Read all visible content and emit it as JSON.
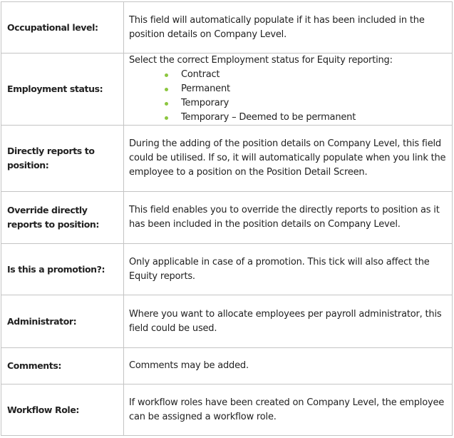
{
  "bullet_color": "#8cc63f",
  "rows": [
    {
      "label": "Occupational level:",
      "text": "This field will automatically populate if it has been included in the position details on Company Level."
    },
    {
      "label": "Employment status:",
      "text": "Select the correct Employment status for Equity reporting:",
      "bullets": [
        "Contract",
        "Permanent",
        "Temporary",
        "Temporary – Deemed to be permanent"
      ]
    },
    {
      "label": "Directly reports to position:",
      "text": "During the adding of the position details on Company Level, this field could be utilised. If so, it will automatically populate when you link the employee to a position on the Position Detail Screen."
    },
    {
      "label": "Override directly reports to position:",
      "text": "This field enables you to override the directly reports to position as it has been included in the position details on Company Level."
    },
    {
      "label": "Is this a promotion?:",
      "text": "Only applicable in case of a promotion. This tick will also affect the Equity reports."
    },
    {
      "label": "Administrator:",
      "text": "Where you want to allocate employees per payroll administrator, this field could be used."
    },
    {
      "label": "Comments:",
      "text": "Comments may be added."
    },
    {
      "label": "Workflow Role:",
      "text": "If workflow roles have been created on Company Level, the employee can be assigned a workflow role."
    }
  ]
}
